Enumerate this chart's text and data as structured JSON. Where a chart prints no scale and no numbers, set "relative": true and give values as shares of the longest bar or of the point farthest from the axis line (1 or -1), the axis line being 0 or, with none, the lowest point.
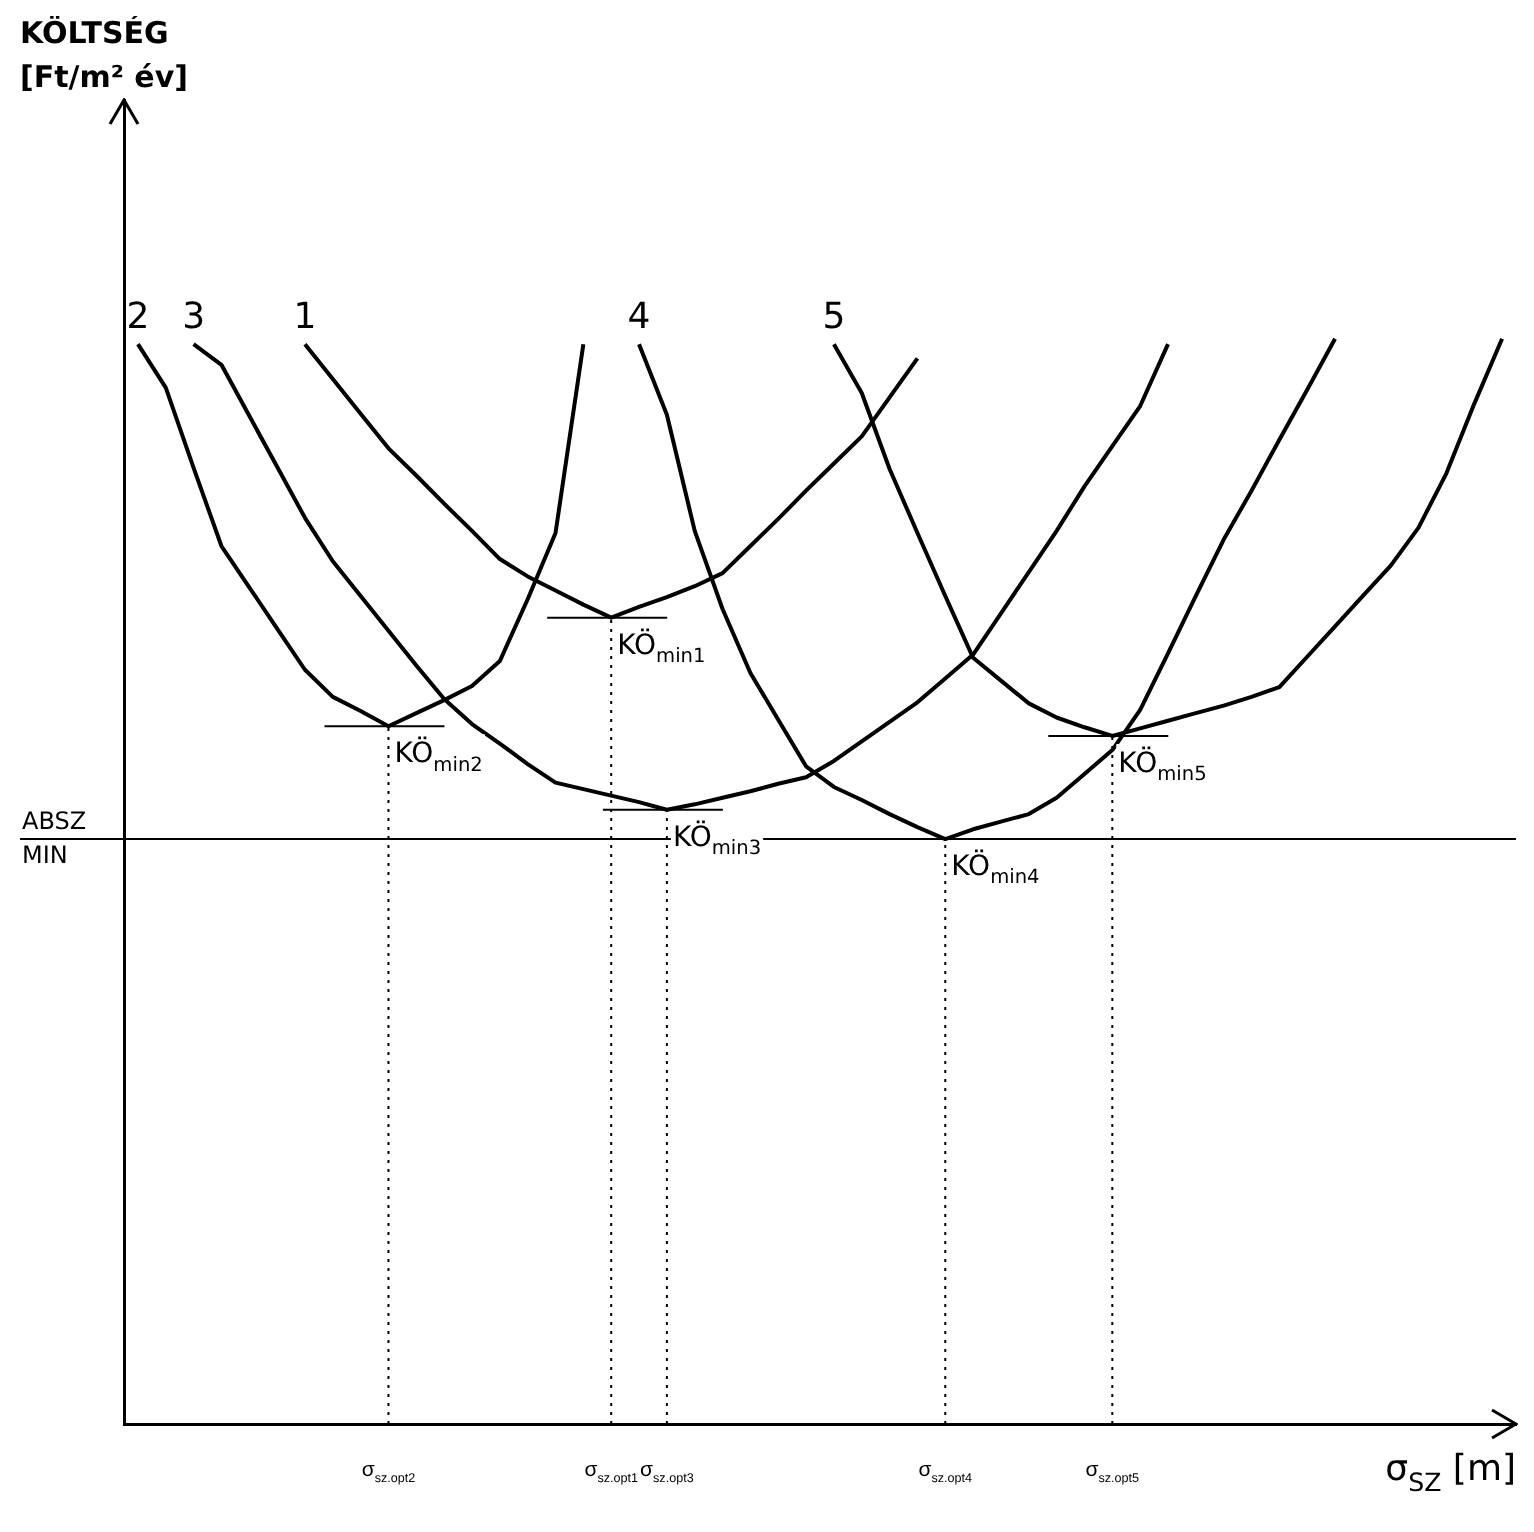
{
  "chart_data": {
    "type": "line",
    "relative": true,
    "xlabel": "σ$_{SZ}$ [m]",
    "tick_labels": "x",
    "grid": false,
    "legend": false,
    "marker": "none",
    "line_style": "solid",
    "categories": [
      null,
      null,
      null,
      null,
      null,
      null,
      null,
      null,
      null,
      "σ$_{sz.opt2}$",
      null,
      null,
      null,
      null,
      null,
      null,
      null,
      "σ$_{sz.opt1}$",
      null,
      "σ$_{sz.opt3}$",
      null,
      null,
      null,
      null,
      null,
      null,
      null,
      null,
      null,
      "σ$_{sz.opt4}$",
      null,
      null,
      null,
      null,
      null,
      "σ$_{sz.opt5}$",
      null,
      null,
      null,
      null,
      null,
      null,
      null,
      null,
      null,
      null,
      null,
      null,
      null,
      null
    ],
    "series": [
      {
        "name": "1",
        "color": "#000000",
        "values": [
          null,
          null,
          null,
          null,
          null,
          null,
          0.995,
          0.963,
          0.931,
          0.899,
          0.874,
          0.848,
          0.823,
          0.797,
          0.781,
          0.768,
          0.755,
          0.743,
          0.753,
          0.762,
          0.772,
          0.784,
          0.809,
          0.834,
          0.86,
          0.885,
          0.91,
          0.946,
          0.982,
          null,
          null,
          null,
          null,
          null,
          null,
          null,
          null,
          null,
          null,
          null,
          null,
          null,
          null,
          null,
          null,
          null,
          null,
          null,
          null,
          null
        ]
      },
      {
        "name": "2",
        "color": "#000000",
        "values": [
          0.995,
          0.955,
          0.881,
          0.809,
          0.771,
          0.733,
          0.695,
          0.67,
          0.657,
          0.643,
          0.655,
          0.667,
          0.68,
          0.703,
          0.76,
          0.821,
          0.995,
          null,
          null,
          null,
          null,
          null,
          null,
          null,
          null,
          null,
          null,
          null,
          null,
          null,
          null,
          null,
          null,
          null,
          null,
          null,
          null,
          null,
          null,
          null,
          null,
          null,
          null,
          null,
          null,
          null,
          null,
          null,
          null,
          null
        ]
      },
      {
        "name": "3",
        "color": "#000000",
        "values": [
          null,
          null,
          0.995,
          0.976,
          0.929,
          0.882,
          0.835,
          0.795,
          0.763,
          0.731,
          0.699,
          0.668,
          0.645,
          0.627,
          0.608,
          0.591,
          0.585,
          0.579,
          0.573,
          0.566,
          0.571,
          0.577,
          0.583,
          0.59,
          0.596,
          0.611,
          0.629,
          0.647,
          0.665,
          0.687,
          0.709,
          0.747,
          0.785,
          0.823,
          0.864,
          0.901,
          0.938,
          0.995,
          null,
          null,
          null,
          null,
          null,
          null,
          null,
          null,
          null,
          null,
          null,
          null
        ]
      },
      {
        "name": "4",
        "color": "#000000",
        "values": [
          null,
          null,
          null,
          null,
          null,
          null,
          null,
          null,
          null,
          null,
          null,
          null,
          null,
          null,
          null,
          null,
          null,
          null,
          0.995,
          0.93,
          0.823,
          0.751,
          0.692,
          0.649,
          0.606,
          0.587,
          0.575,
          0.562,
          0.55,
          0.539,
          0.548,
          0.555,
          0.562,
          0.577,
          0.599,
          0.621,
          0.658,
          0.71,
          0.763,
          0.815,
          0.86,
          0.907,
          0.953,
          1,
          null,
          null,
          null,
          null,
          null,
          null
        ]
      },
      {
        "name": "5",
        "color": "#000000",
        "values": [
          null,
          null,
          null,
          null,
          null,
          null,
          null,
          null,
          null,
          null,
          null,
          null,
          null,
          null,
          null,
          null,
          null,
          null,
          null,
          null,
          null,
          null,
          null,
          null,
          null,
          0.995,
          0.95,
          0.88,
          0.821,
          0.763,
          0.706,
          0.685,
          0.664,
          0.651,
          0.642,
          0.634,
          0.641,
          0.648,
          0.655,
          0.662,
          0.67,
          0.679,
          0.707,
          0.735,
          0.763,
          0.791,
          0.826,
          0.876,
          0.94,
          1
        ]
      }
    ],
    "ref_lines": [
      {
        "axis": "y",
        "value": 0.539,
        "label": "ABSZ MIN",
        "color": "#000000",
        "line_style": "solid"
      },
      {
        "axis": "x",
        "value": "σ$_{sz.opt2}$",
        "color": "#000000",
        "line_style": "dotted"
      },
      {
        "axis": "x",
        "value": "σ$_{sz.opt1}$",
        "color": "#000000",
        "line_style": "dotted"
      },
      {
        "axis": "x",
        "value": "σ$_{sz.opt3}$",
        "color": "#000000",
        "line_style": "dotted"
      },
      {
        "axis": "x",
        "value": "σ$_{sz.opt4}$",
        "color": "#000000",
        "line_style": "dotted"
      },
      {
        "axis": "x",
        "value": "σ$_{sz.opt5}$",
        "color": "#000000",
        "line_style": "dotted"
      }
    ],
    "annotations": [
      "KÖLTSÉG\n[Ft/m² év]",
      {
        "text": "KÖ$_{min1}$",
        "x": "σ$_{sz.opt1}$",
        "y": 0.743
      },
      {
        "text": "KÖ$_{min2}$",
        "x": "σ$_{sz.opt2}$",
        "y": 0.643
      },
      {
        "text": "KÖ$_{min3}$",
        "x": "σ$_{sz.opt3}$",
        "y": 0.566
      },
      {
        "text": "KÖ$_{min4}$",
        "x": "σ$_{sz.opt4}$",
        "y": 0.539
      },
      {
        "text": "KÖ$_{min5}$",
        "x": "σ$_{sz.opt5}$",
        "y": 0.634
      }
    ]
  }
}
